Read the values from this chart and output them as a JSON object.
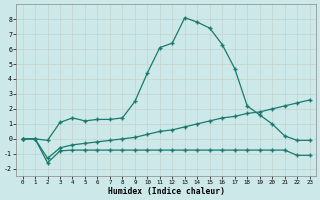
{
  "xlabel": "Humidex (Indice chaleur)",
  "line1_x": [
    0,
    1,
    2,
    3,
    4,
    5,
    6,
    7,
    8,
    9,
    10,
    11,
    12,
    13,
    14,
    15,
    16,
    17,
    18,
    19,
    20,
    21,
    22,
    23
  ],
  "line1_y": [
    0.0,
    0.0,
    -0.1,
    1.1,
    1.4,
    1.2,
    1.3,
    1.3,
    1.4,
    2.5,
    4.4,
    6.1,
    6.4,
    8.1,
    7.8,
    7.4,
    6.3,
    4.7,
    2.2,
    1.6,
    1.0,
    0.2,
    -0.1,
    -0.1
  ],
  "line2_x": [
    0,
    1,
    2,
    3,
    4,
    5,
    6,
    7,
    8,
    9,
    10,
    11,
    12,
    13,
    14,
    15,
    16,
    17,
    18,
    19,
    20,
    21,
    22,
    23
  ],
  "line2_y": [
    0.0,
    0.0,
    -1.3,
    -0.6,
    -0.4,
    -0.3,
    -0.2,
    -0.1,
    0.0,
    0.1,
    0.3,
    0.5,
    0.6,
    0.8,
    1.0,
    1.2,
    1.4,
    1.5,
    1.7,
    1.8,
    2.0,
    2.2,
    2.4,
    2.6
  ],
  "line3_x": [
    0,
    1,
    2,
    3,
    4,
    5,
    6,
    7,
    8,
    9,
    10,
    11,
    12,
    13,
    14,
    15,
    16,
    17,
    18,
    19,
    20,
    21,
    22,
    23
  ],
  "line3_y": [
    0.0,
    0.0,
    -1.6,
    -0.8,
    -0.75,
    -0.75,
    -0.75,
    -0.75,
    -0.75,
    -0.75,
    -0.75,
    -0.75,
    -0.75,
    -0.75,
    -0.75,
    -0.75,
    -0.75,
    -0.75,
    -0.75,
    -0.75,
    -0.75,
    -0.75,
    -1.1,
    -1.1
  ],
  "line_color": "#1a7a6e",
  "bg_color": "#cde8e8",
  "grid_color": "#b8d8d8",
  "ylim": [
    -2.5,
    9.0
  ],
  "xlim": [
    -0.5,
    23.5
  ],
  "yticks": [
    -2,
    -1,
    0,
    1,
    2,
    3,
    4,
    5,
    6,
    7,
    8
  ],
  "xticks": [
    0,
    1,
    2,
    3,
    4,
    5,
    6,
    7,
    8,
    9,
    10,
    11,
    12,
    13,
    14,
    15,
    16,
    17,
    18,
    19,
    20,
    21,
    22,
    23
  ]
}
